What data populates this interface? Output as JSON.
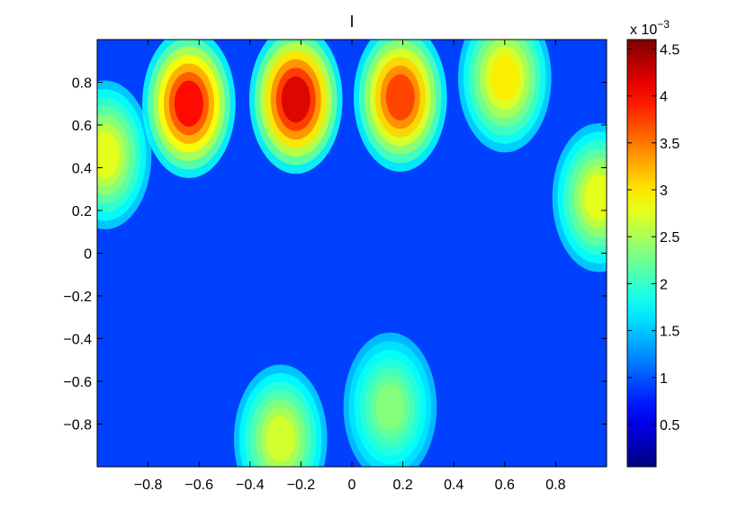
{
  "chart_data": {
    "type": "heatmap",
    "title": "I",
    "xlabel": "",
    "ylabel": "",
    "xlim": [
      -1,
      1
    ],
    "ylim": [
      -1,
      1
    ],
    "x_ticks": [
      -0.8,
      -0.6,
      -0.4,
      -0.2,
      0,
      0.2,
      0.4,
      0.6,
      0.8
    ],
    "x_tick_labels": [
      "−0.8",
      "−0.6",
      "−0.4",
      "−0.2",
      "0",
      "0.2",
      "0.4",
      "0.6",
      "0.8"
    ],
    "y_ticks": [
      0.8,
      0.6,
      0.4,
      0.2,
      0,
      -0.2,
      -0.4,
      -0.6,
      -0.8
    ],
    "y_tick_labels": [
      "0.8",
      "0.6",
      "0.4",
      "0.2",
      "0",
      "−0.2",
      "−0.4",
      "−0.6",
      "−0.8"
    ],
    "colormap": "jet",
    "colorbar": {
      "range": [
        0.05,
        4.6
      ],
      "exponent_label": "x 10",
      "exponent_power": "−3",
      "ticks": [
        0.5,
        1,
        1.5,
        2,
        2.5,
        3,
        3.5,
        4,
        4.5
      ],
      "tick_labels": [
        "0.5",
        "1",
        "1.5",
        "2",
        "2.5",
        "3",
        "3.5",
        "4",
        "4.5"
      ]
    },
    "hotspots": [
      {
        "x": -0.64,
        "y": 0.7,
        "value": 4.4
      },
      {
        "x": -0.22,
        "y": 0.72,
        "value": 4.6
      },
      {
        "x": 0.19,
        "y": 0.73,
        "value": 4.1
      },
      {
        "x": 0.6,
        "y": 0.82,
        "value": 3.2
      },
      {
        "x": -0.28,
        "y": -0.87,
        "value": 2.9
      },
      {
        "x": 0.97,
        "y": 0.26,
        "value": 3.0
      },
      {
        "x": -0.97,
        "y": 0.46,
        "value": 3.0
      },
      {
        "x": 0.15,
        "y": -0.72,
        "value": 2.5
      }
    ],
    "grid": false,
    "legend": "colorbar-right"
  }
}
